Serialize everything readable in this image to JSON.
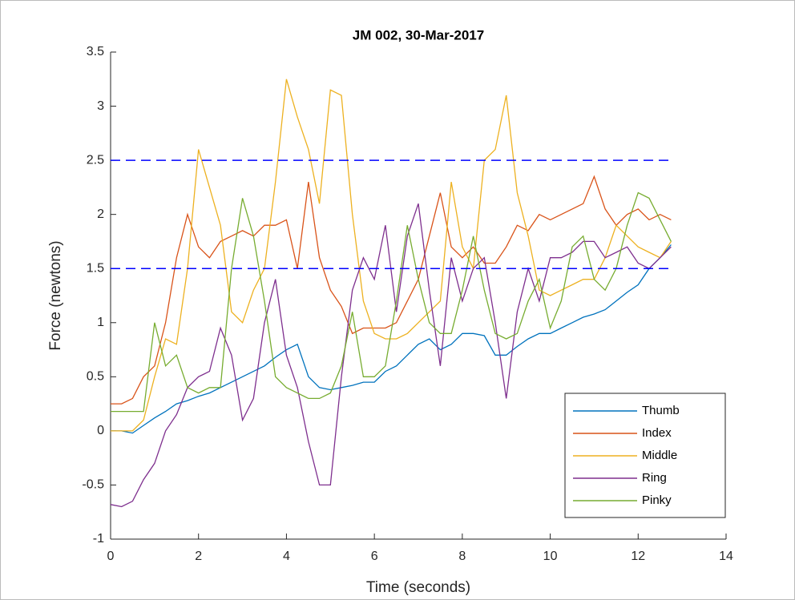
{
  "chart_data": {
    "type": "line",
    "title": "JM 002, 30-Mar-2017",
    "x_label": "Time (seconds)",
    "y_label": "Force (newtons)",
    "xlim": [
      0,
      14
    ],
    "xticks": [
      0,
      2,
      4,
      6,
      8,
      10,
      12,
      14
    ],
    "ylim": [
      -1,
      3.5
    ],
    "yticks": [
      -1,
      -0.5,
      0,
      0.5,
      1,
      1.5,
      2,
      2.5,
      3,
      3.5
    ],
    "grid": false,
    "legend": "southeast",
    "x": [
      0,
      0.25,
      0.5,
      0.75,
      1,
      1.25,
      1.5,
      1.75,
      2,
      2.25,
      2.5,
      2.75,
      3,
      3.25,
      3.5,
      3.75,
      4,
      4.25,
      4.5,
      4.75,
      5,
      5.25,
      5.5,
      5.75,
      6,
      6.25,
      6.5,
      6.75,
      7,
      7.25,
      7.5,
      7.75,
      8,
      8.25,
      8.5,
      8.75,
      9,
      9.25,
      9.5,
      9.75,
      10,
      10.25,
      10.5,
      10.75,
      11,
      11.25,
      11.5,
      11.75,
      12,
      12.25,
      12.5,
      12.75
    ],
    "series": [
      {
        "name": "Thumb",
        "color": "#0072bd",
        "values": [
          0,
          0,
          -0.02,
          0.05,
          0.12,
          0.18,
          0.25,
          0.28,
          0.32,
          0.35,
          0.4,
          0.45,
          0.5,
          0.55,
          0.6,
          0.68,
          0.75,
          0.8,
          0.5,
          0.4,
          0.38,
          0.4,
          0.42,
          0.45,
          0.45,
          0.55,
          0.6,
          0.7,
          0.8,
          0.85,
          0.75,
          0.8,
          0.9,
          0.9,
          0.88,
          0.7,
          0.7,
          0.78,
          0.85,
          0.9,
          0.9,
          0.95,
          1.0,
          1.05,
          1.08,
          1.12,
          1.2,
          1.28,
          1.35,
          1.5,
          1.6,
          1.72
        ]
      },
      {
        "name": "Index",
        "color": "#d95319",
        "values": [
          0.25,
          0.25,
          0.3,
          0.5,
          0.6,
          1.0,
          1.6,
          2.0,
          1.7,
          1.6,
          1.75,
          1.8,
          1.85,
          1.8,
          1.9,
          1.9,
          1.95,
          1.5,
          2.3,
          1.6,
          1.3,
          1.15,
          0.9,
          0.95,
          0.95,
          0.95,
          1.0,
          1.2,
          1.4,
          1.8,
          2.2,
          1.7,
          1.6,
          1.7,
          1.55,
          1.55,
          1.7,
          1.9,
          1.85,
          2.0,
          1.95,
          2.0,
          2.05,
          2.1,
          2.35,
          2.05,
          1.9,
          2.0,
          2.05,
          1.95,
          2.0,
          1.95
        ]
      },
      {
        "name": "Middle",
        "color": "#edb120",
        "values": [
          0,
          0,
          0,
          0.1,
          0.5,
          0.85,
          0.8,
          1.5,
          2.6,
          2.25,
          1.9,
          1.1,
          1.0,
          1.3,
          1.5,
          2.3,
          3.25,
          2.9,
          2.6,
          2.1,
          3.15,
          3.1,
          2.0,
          1.2,
          0.9,
          0.85,
          0.85,
          0.9,
          1.0,
          1.1,
          1.2,
          2.3,
          1.7,
          1.5,
          2.5,
          2.6,
          3.1,
          2.2,
          1.8,
          1.3,
          1.25,
          1.3,
          1.35,
          1.4,
          1.4,
          1.6,
          1.9,
          1.8,
          1.7,
          1.65,
          1.6,
          1.75
        ]
      },
      {
        "name": "Ring",
        "color": "#7e2f8e",
        "values": [
          -0.68,
          -0.7,
          -0.65,
          -0.45,
          -0.3,
          0.0,
          0.15,
          0.4,
          0.5,
          0.55,
          0.95,
          0.7,
          0.1,
          0.3,
          1.0,
          1.4,
          0.7,
          0.4,
          -0.1,
          -0.5,
          -0.5,
          0.5,
          1.3,
          1.6,
          1.4,
          1.9,
          1.1,
          1.8,
          2.1,
          1.3,
          0.6,
          1.6,
          1.2,
          1.5,
          1.6,
          1.0,
          0.3,
          1.1,
          1.5,
          1.2,
          1.6,
          1.6,
          1.65,
          1.75,
          1.75,
          1.6,
          1.65,
          1.7,
          1.55,
          1.5,
          1.6,
          1.7
        ]
      },
      {
        "name": "Pinky",
        "color": "#77ac30",
        "values": [
          0.18,
          0.18,
          0.18,
          0.18,
          1.0,
          0.6,
          0.7,
          0.4,
          0.35,
          0.4,
          0.4,
          1.5,
          2.15,
          1.8,
          1.2,
          0.5,
          0.4,
          0.35,
          0.3,
          0.3,
          0.35,
          0.6,
          1.1,
          0.5,
          0.5,
          0.6,
          1.2,
          1.9,
          1.4,
          1.0,
          0.9,
          0.9,
          1.3,
          1.8,
          1.3,
          0.9,
          0.85,
          0.9,
          1.2,
          1.4,
          0.95,
          1.2,
          1.7,
          1.8,
          1.4,
          1.3,
          1.5,
          1.9,
          2.2,
          2.15,
          1.95,
          1.75
        ]
      }
    ],
    "reference_lines": {
      "values": [
        1.5,
        2.5
      ],
      "x": [
        0,
        12.8
      ],
      "color": "#0000ff"
    }
  }
}
